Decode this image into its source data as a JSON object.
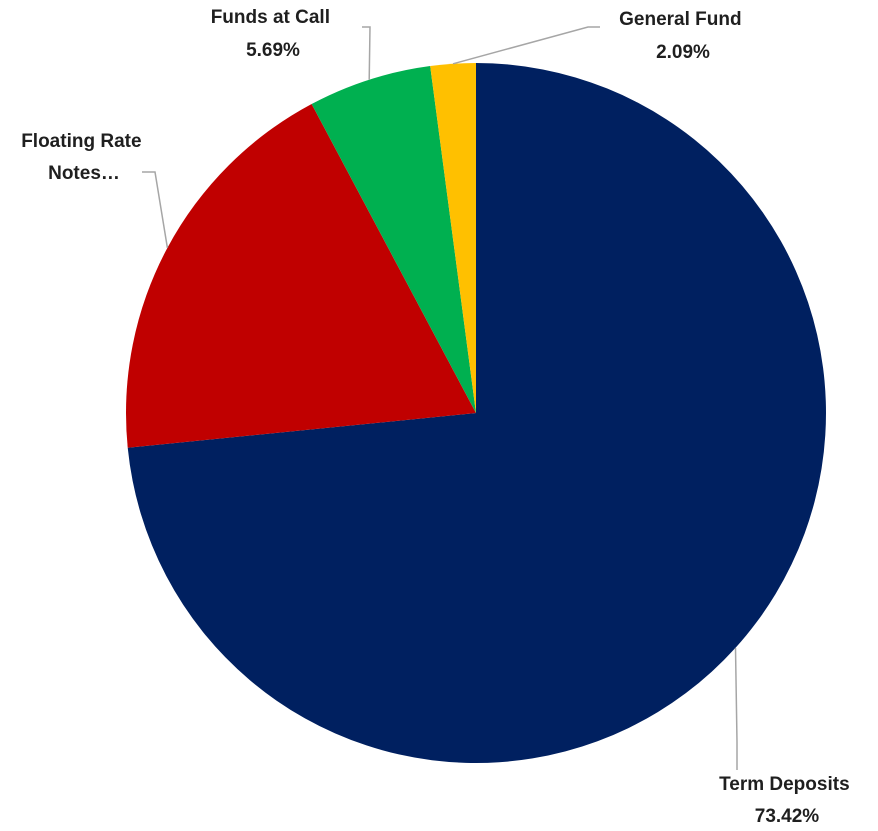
{
  "chart_data": {
    "type": "pie",
    "slices": [
      {
        "label": "Term Deposits",
        "value_label": "73.42%",
        "value": 73.42,
        "color": "#002060"
      },
      {
        "label": "Floating Rate Notes…",
        "label_lines": [
          "Floating Rate",
          "Notes…"
        ],
        "value_label": "",
        "value": 18.8,
        "color": "#C00000"
      },
      {
        "label": "Funds at Call",
        "value_label": "5.69%",
        "value": 5.69,
        "color": "#00B050"
      },
      {
        "label": "General Fund",
        "value_label": "2.09%",
        "value": 2.09,
        "color": "#FFC000"
      }
    ],
    "start_angle_deg": 0,
    "direction": "clockwise",
    "legend": "none",
    "data_labels": "outside with leader lines"
  }
}
